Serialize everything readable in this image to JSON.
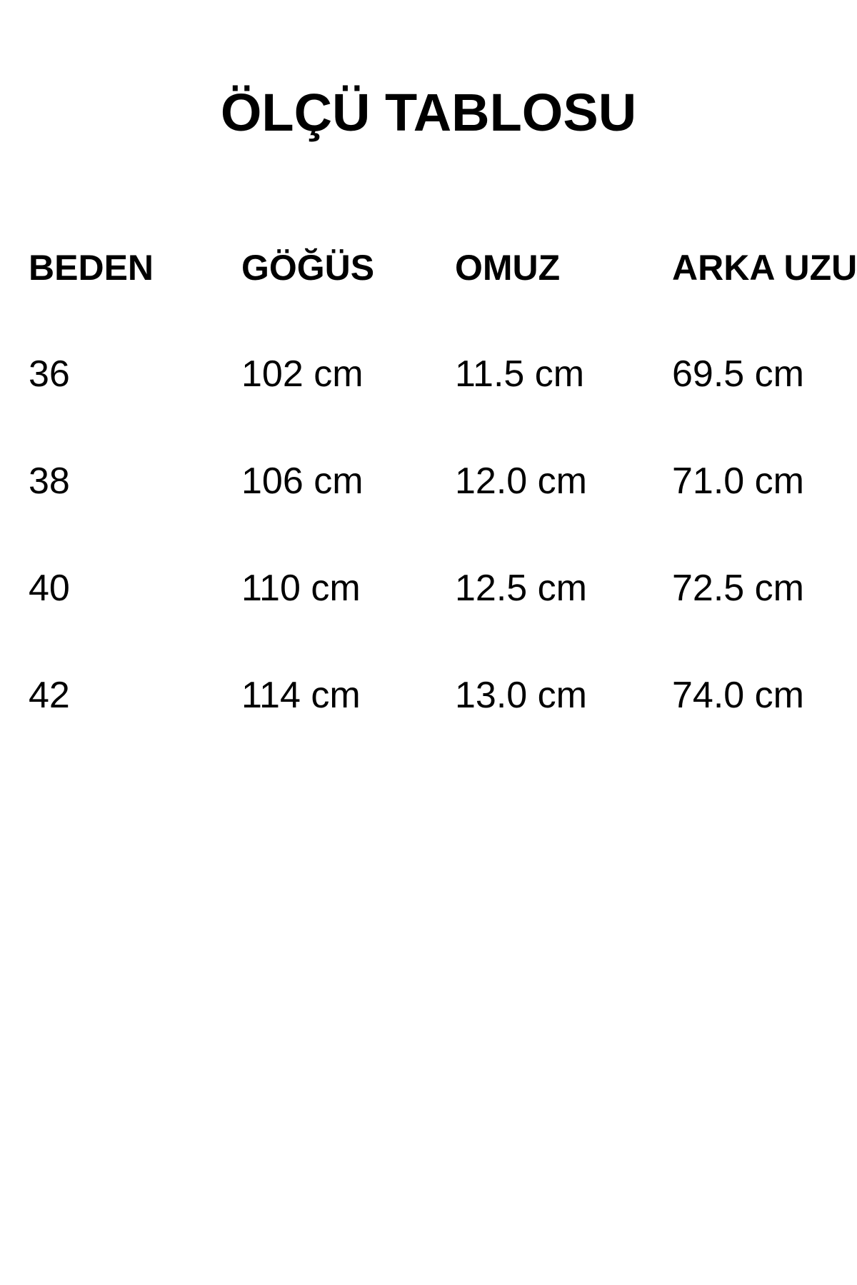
{
  "page": {
    "background_color": "#ffffff",
    "text_color": "#000000"
  },
  "title": "ÖLÇÜ TABLOSU",
  "table": {
    "headers": [
      "BEDEN",
      "GÖĞÜS",
      "OMUZ",
      "ARKA UZU"
    ],
    "unit": "cm",
    "rows": [
      [
        "36",
        "102 cm",
        "11.5 cm",
        "69.5 cm"
      ],
      [
        "38",
        "106 cm",
        "12.0 cm",
        "71.0 cm"
      ],
      [
        "40",
        "110 cm",
        "12.5 cm",
        "72.5 cm"
      ],
      [
        "42",
        "114 cm",
        "13.0 cm",
        "74.0 cm"
      ]
    ]
  }
}
